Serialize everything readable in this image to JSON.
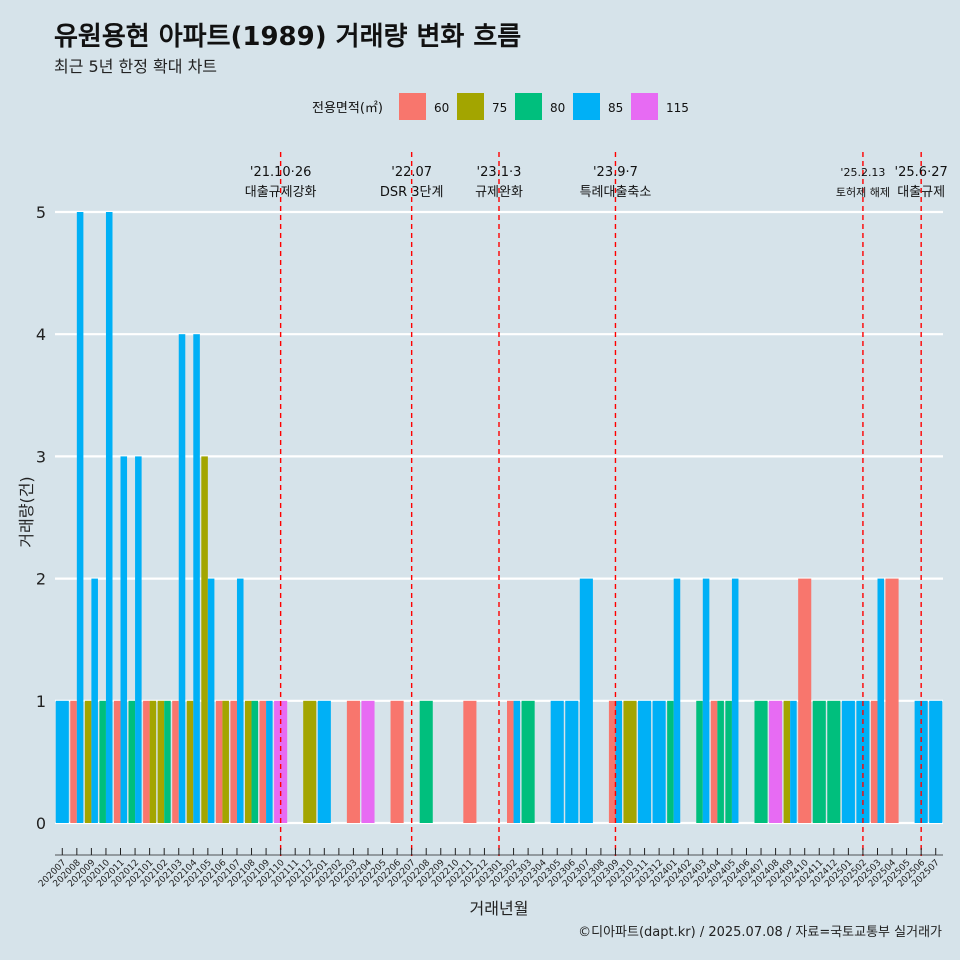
{
  "header": {
    "title": "유원용현 아파트(1989) 거래량 변화 흐름",
    "subtitle": "최근 5년 한정 확대 차트",
    "caption": "©디아파트(dapt.kr) / 2025.07.08 / 자료=국토교통부 실거래가"
  },
  "chart_data": {
    "type": "bar",
    "xlabel": "거래년월",
    "ylabel": "거래량(건)",
    "ylim": [
      -0.25,
      5.5
    ],
    "yticks": [
      0,
      1,
      2,
      3,
      4,
      5
    ],
    "legend": {
      "title": "전용면적(㎡)",
      "position": "top",
      "entries": [
        {
          "label": "60",
          "color": "#f8766d"
        },
        {
          "label": "75",
          "color": "#a3a500"
        },
        {
          "label": "80",
          "color": "#00bf7d"
        },
        {
          "label": "85",
          "color": "#00b0f6"
        },
        {
          "label": "115",
          "color": "#e76bf3"
        }
      ]
    },
    "months": [
      "202007",
      "202008",
      "202009",
      "202010",
      "202011",
      "202012",
      "202101",
      "202102",
      "202103",
      "202104",
      "202105",
      "202106",
      "202107",
      "202108",
      "202109",
      "202110",
      "202111",
      "202112",
      "202201",
      "202202",
      "202203",
      "202204",
      "202205",
      "202206",
      "202207",
      "202208",
      "202209",
      "202210",
      "202211",
      "202212",
      "202301",
      "202302",
      "202303",
      "202304",
      "202305",
      "202306",
      "202307",
      "202308",
      "202309",
      "202310",
      "202311",
      "202312",
      "202401",
      "202402",
      "202403",
      "202404",
      "202405",
      "202406",
      "202407",
      "202408",
      "202409",
      "202410",
      "202411",
      "202412",
      "202501",
      "202502",
      "202503",
      "202504",
      "202505",
      "202506",
      "202507"
    ],
    "bars": [
      {
        "month": "202007",
        "area": "85",
        "value": 1
      },
      {
        "month": "202008",
        "area": "60",
        "value": 1
      },
      {
        "month": "202008",
        "area": "85",
        "value": 5
      },
      {
        "month": "202009",
        "area": "75",
        "value": 1
      },
      {
        "month": "202009",
        "area": "85",
        "value": 2
      },
      {
        "month": "202010",
        "area": "80",
        "value": 1
      },
      {
        "month": "202010",
        "area": "85",
        "value": 5
      },
      {
        "month": "202011",
        "area": "60",
        "value": 1
      },
      {
        "month": "202011",
        "area": "85",
        "value": 3
      },
      {
        "month": "202012",
        "area": "80",
        "value": 1
      },
      {
        "month": "202012",
        "area": "85",
        "value": 3
      },
      {
        "month": "202101",
        "area": "60",
        "value": 1
      },
      {
        "month": "202101",
        "area": "75",
        "value": 1
      },
      {
        "month": "202102",
        "area": "80",
        "value": 1
      },
      {
        "month": "202102",
        "area": "75",
        "value": 1
      },
      {
        "month": "202103",
        "area": "60",
        "value": 1
      },
      {
        "month": "202103",
        "area": "85",
        "value": 4
      },
      {
        "month": "202104",
        "area": "75",
        "value": 1
      },
      {
        "month": "202104",
        "area": "85",
        "value": 4
      },
      {
        "month": "202105",
        "area": "75",
        "value": 3
      },
      {
        "month": "202105",
        "area": "85",
        "value": 2
      },
      {
        "month": "202106",
        "area": "60",
        "value": 1
      },
      {
        "month": "202106",
        "area": "75",
        "value": 1
      },
      {
        "month": "202107",
        "area": "60",
        "value": 1
      },
      {
        "month": "202107",
        "area": "85",
        "value": 2
      },
      {
        "month": "202108",
        "area": "75",
        "value": 1
      },
      {
        "month": "202108",
        "area": "80",
        "value": 1
      },
      {
        "month": "202109",
        "area": "60",
        "value": 1
      },
      {
        "month": "202109",
        "area": "85",
        "value": 1
      },
      {
        "month": "202110",
        "area": "115",
        "value": 1
      },
      {
        "month": "202112",
        "area": "75",
        "value": 1
      },
      {
        "month": "202201",
        "area": "85",
        "value": 1
      },
      {
        "month": "202203",
        "area": "60",
        "value": 1
      },
      {
        "month": "202204",
        "area": "115",
        "value": 1
      },
      {
        "month": "202206",
        "area": "60",
        "value": 1
      },
      {
        "month": "202208",
        "area": "80",
        "value": 1
      },
      {
        "month": "202211",
        "area": "60",
        "value": 1
      },
      {
        "month": "202302",
        "area": "60",
        "value": 1
      },
      {
        "month": "202302",
        "area": "85",
        "value": 1
      },
      {
        "month": "202303",
        "area": "80",
        "value": 1
      },
      {
        "month": "202305",
        "area": "85",
        "value": 1
      },
      {
        "month": "202306",
        "area": "85",
        "value": 1
      },
      {
        "month": "202307",
        "area": "85",
        "value": 2
      },
      {
        "month": "202309",
        "area": "60",
        "value": 1
      },
      {
        "month": "202309",
        "area": "85",
        "value": 1
      },
      {
        "month": "202310",
        "area": "75",
        "value": 1
      },
      {
        "month": "202311",
        "area": "85",
        "value": 1
      },
      {
        "month": "202312",
        "area": "85",
        "value": 1
      },
      {
        "month": "202401",
        "area": "80",
        "value": 1
      },
      {
        "month": "202401",
        "area": "85",
        "value": 2
      },
      {
        "month": "202403",
        "area": "80",
        "value": 1
      },
      {
        "month": "202403",
        "area": "85",
        "value": 2
      },
      {
        "month": "202404",
        "area": "60",
        "value": 1
      },
      {
        "month": "202404",
        "area": "80",
        "value": 1
      },
      {
        "month": "202405",
        "area": "80",
        "value": 1
      },
      {
        "month": "202405",
        "area": "85",
        "value": 2
      },
      {
        "month": "202407",
        "area": "80",
        "value": 1
      },
      {
        "month": "202408",
        "area": "115",
        "value": 1
      },
      {
        "month": "202409",
        "area": "75",
        "value": 1
      },
      {
        "month": "202409",
        "area": "85",
        "value": 1
      },
      {
        "month": "202410",
        "area": "60",
        "value": 2
      },
      {
        "month": "202411",
        "area": "80",
        "value": 1
      },
      {
        "month": "202412",
        "area": "80",
        "value": 1
      },
      {
        "month": "202501",
        "area": "85",
        "value": 1
      },
      {
        "month": "202502",
        "area": "85",
        "value": 1
      },
      {
        "month": "202503",
        "area": "60",
        "value": 1
      },
      {
        "month": "202503",
        "area": "85",
        "value": 2
      },
      {
        "month": "202504",
        "area": "60",
        "value": 2
      },
      {
        "month": "202506",
        "area": "85",
        "value": 1
      },
      {
        "month": "202507",
        "area": "85",
        "value": 1
      }
    ],
    "annotations": [
      {
        "month": "202110",
        "date": "'21.10·26",
        "text": "대출규제강화"
      },
      {
        "month": "202207",
        "date": "'22.07",
        "text": "DSR 3단계"
      },
      {
        "month": "202301",
        "date": "'23.1·3",
        "text": "규제완화"
      },
      {
        "month": "202309",
        "date": "'23.9·7",
        "text": "특례대출축소"
      },
      {
        "month": "202502",
        "date": "'25.2.13",
        "text": "토허제 해제"
      },
      {
        "month": "202506",
        "date": "'25.6·27",
        "text": "대출규제"
      }
    ]
  }
}
